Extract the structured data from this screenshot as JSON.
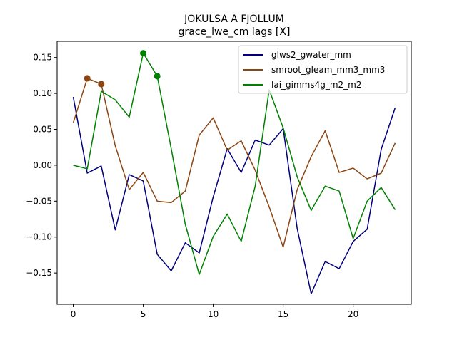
{
  "chart_data": {
    "type": "line",
    "title": "JOKULSA A FJOLLUM",
    "subtitle": "grace_lwe_cm lags [X]",
    "xlabel": "",
    "ylabel": "",
    "xlim": [
      -1.15,
      24.15
    ],
    "ylim": [
      -0.1935,
      0.1725
    ],
    "xticks": [
      0,
      5,
      10,
      15,
      20
    ],
    "yticks": [
      -0.15,
      -0.1,
      -0.05,
      0.0,
      0.05,
      0.1,
      0.15
    ],
    "ytick_labels": [
      "−0.15",
      "−0.10",
      "−0.05",
      "0.00",
      "0.05",
      "0.10",
      "0.15"
    ],
    "grid": false,
    "legend_position": "top-right",
    "x": [
      0,
      1,
      2,
      3,
      4,
      5,
      6,
      7,
      8,
      9,
      10,
      11,
      12,
      13,
      14,
      15,
      16,
      17,
      18,
      19,
      20,
      21,
      22,
      23
    ],
    "series": [
      {
        "name": "glws2_gwater_mm",
        "color": "#00007f",
        "values": [
          0.095,
          -0.011,
          -0.001,
          -0.09,
          -0.013,
          -0.022,
          -0.124,
          -0.147,
          -0.108,
          -0.122,
          -0.044,
          0.023,
          -0.01,
          0.035,
          0.028,
          0.051,
          -0.088,
          -0.179,
          -0.134,
          -0.144,
          -0.106,
          -0.089,
          0.022,
          0.08
        ],
        "markers": []
      },
      {
        "name": "smroot_gleam_mm3_mm3",
        "color": "#8b4513",
        "values": [
          0.059,
          0.121,
          0.113,
          0.027,
          -0.034,
          -0.01,
          -0.05,
          -0.052,
          -0.036,
          0.042,
          0.066,
          0.021,
          0.034,
          -0.007,
          -0.058,
          -0.114,
          -0.034,
          0.012,
          0.048,
          -0.01,
          -0.004,
          -0.019,
          -0.011,
          0.031
        ],
        "markers": [
          1,
          2
        ]
      },
      {
        "name": "lai_gimms4g_m2_m2",
        "color": "#008000",
        "values": [
          0.0,
          -0.005,
          0.103,
          0.091,
          0.067,
          0.156,
          0.124,
          0.023,
          -0.082,
          -0.152,
          -0.099,
          -0.068,
          -0.106,
          -0.029,
          0.105,
          0.052,
          -0.016,
          -0.063,
          -0.029,
          -0.036,
          -0.102,
          -0.05,
          -0.031,
          -0.062
        ],
        "markers": [
          5,
          6
        ]
      }
    ]
  }
}
